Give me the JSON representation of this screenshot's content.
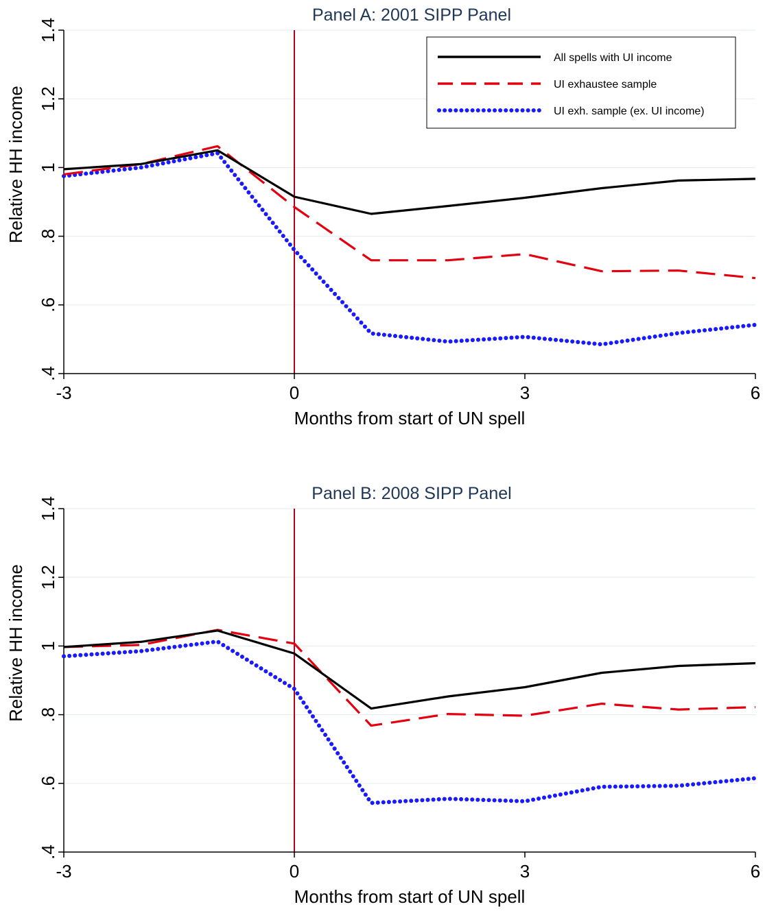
{
  "chart_data": [
    {
      "type": "line",
      "title": "Panel A:  2001 SIPP Panel",
      "xlabel": "Months from start of UN spell",
      "ylabel": "Relative HH income",
      "xlim": [
        -3,
        6
      ],
      "ylim": [
        0.4,
        1.4
      ],
      "xticks": [
        -3,
        0,
        3,
        6
      ],
      "xtick_labels": [
        "-3",
        "0",
        "3",
        "6"
      ],
      "yticks": [
        0.4,
        0.6,
        0.8,
        1.0,
        1.2,
        1.4
      ],
      "ytick_labels": [
        ".4",
        ".6",
        ".8",
        "1",
        "1.2",
        "1.4"
      ],
      "grid": "horizontal",
      "vline": 0,
      "legend": "top-right",
      "x": [
        -3,
        -2,
        -1,
        0,
        1,
        2,
        3,
        4,
        5,
        6
      ],
      "series": [
        {
          "name": "All spells with UI income",
          "style": "solid",
          "color": "#000000",
          "values": [
            0.995,
            1.01,
            1.05,
            0.915,
            0.865,
            0.888,
            0.912,
            0.94,
            0.962,
            0.967
          ]
        },
        {
          "name": "UI exhaustee sample",
          "style": "dashed",
          "color": "#e3000f",
          "values": [
            0.98,
            1.01,
            1.062,
            0.885,
            0.73,
            0.73,
            0.748,
            0.698,
            0.7,
            0.678
          ]
        },
        {
          "name": "UI exh. sample (ex. UI income)",
          "style": "dotted",
          "color": "#1a1aff",
          "values": [
            0.975,
            1.0,
            1.042,
            0.76,
            0.517,
            0.493,
            0.507,
            0.485,
            0.518,
            0.542
          ]
        }
      ]
    },
    {
      "type": "line",
      "title": "Panel B:  2008 SIPP Panel",
      "xlabel": "Months from start of UN spell",
      "ylabel": "Relative HH income",
      "xlim": [
        -3,
        6
      ],
      "ylim": [
        0.4,
        1.4
      ],
      "xticks": [
        -3,
        0,
        3,
        6
      ],
      "xtick_labels": [
        "-3",
        "0",
        "3",
        "6"
      ],
      "yticks": [
        0.4,
        0.6,
        0.8,
        1.0,
        1.2,
        1.4
      ],
      "ytick_labels": [
        ".4",
        ".6",
        ".8",
        "1",
        "1.2",
        "1.4"
      ],
      "grid": "horizontal",
      "vline": 0,
      "x": [
        -3,
        -2,
        -1,
        0,
        1,
        2,
        3,
        4,
        5,
        6
      ],
      "series": [
        {
          "name": "All spells with UI income",
          "style": "solid",
          "color": "#000000",
          "values": [
            0.997,
            1.012,
            1.045,
            0.978,
            0.818,
            0.853,
            0.88,
            0.922,
            0.942,
            0.95
          ]
        },
        {
          "name": "UI exhaustee sample",
          "style": "dashed",
          "color": "#e3000f",
          "values": [
            0.997,
            1.003,
            1.047,
            1.007,
            0.768,
            0.802,
            0.797,
            0.832,
            0.815,
            0.822
          ]
        },
        {
          "name": "UI exh. sample (ex. UI income)",
          "style": "dotted",
          "color": "#1a1aff",
          "values": [
            0.97,
            0.985,
            1.013,
            0.875,
            0.543,
            0.555,
            0.548,
            0.59,
            0.593,
            0.615
          ]
        }
      ]
    }
  ]
}
